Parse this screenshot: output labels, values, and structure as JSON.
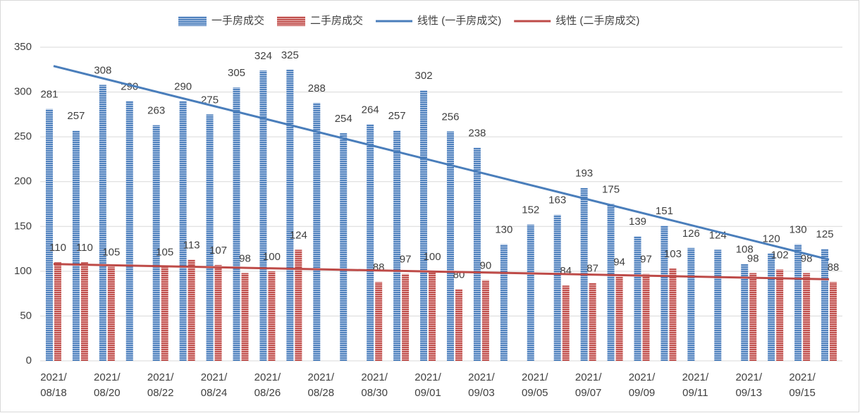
{
  "chart_data": {
    "type": "bar",
    "categories": [
      "2021/08/18",
      null,
      "2021/08/20",
      null,
      "2021/08/22",
      null,
      "2021/08/24",
      null,
      "2021/08/26",
      null,
      "2021/08/28",
      null,
      "2021/08/30",
      null,
      "2021/09/01",
      null,
      "2021/09/03",
      null,
      "2021/09/05",
      null,
      "2021/09/07",
      null,
      "2021/09/09",
      null,
      "2021/09/11",
      null,
      "2021/09/13",
      null,
      "2021/09/15",
      null
    ],
    "series": [
      {
        "name": "一手房成交",
        "color": "#4f81bd",
        "values": [
          281,
          257,
          308,
          290,
          263,
          290,
          275,
          305,
          324,
          325,
          288,
          254,
          264,
          257,
          302,
          256,
          238,
          130,
          152,
          163,
          193,
          175,
          139,
          151,
          126,
          124,
          108,
          120,
          130,
          125
        ]
      },
      {
        "name": "二手房成交",
        "color": "#c0504d",
        "values": [
          110,
          110,
          105,
          null,
          105,
          113,
          107,
          98,
          100,
          124,
          null,
          null,
          88,
          97,
          100,
          80,
          90,
          null,
          null,
          84,
          87,
          94,
          97,
          103,
          null,
          null,
          98,
          102,
          98,
          88
        ]
      }
    ],
    "trendlines": [
      {
        "name": "线性 (一手房成交)",
        "color": "#4a7ebb",
        "from": 329,
        "to": 113
      },
      {
        "name": "线性 (二手房成交)",
        "color": "#be4b48",
        "from": 108,
        "to": 91
      }
    ],
    "ylim": [
      0,
      350
    ],
    "yticks": [
      0,
      50,
      100,
      150,
      200,
      250,
      300,
      350
    ],
    "grid": true,
    "legend": "top"
  }
}
